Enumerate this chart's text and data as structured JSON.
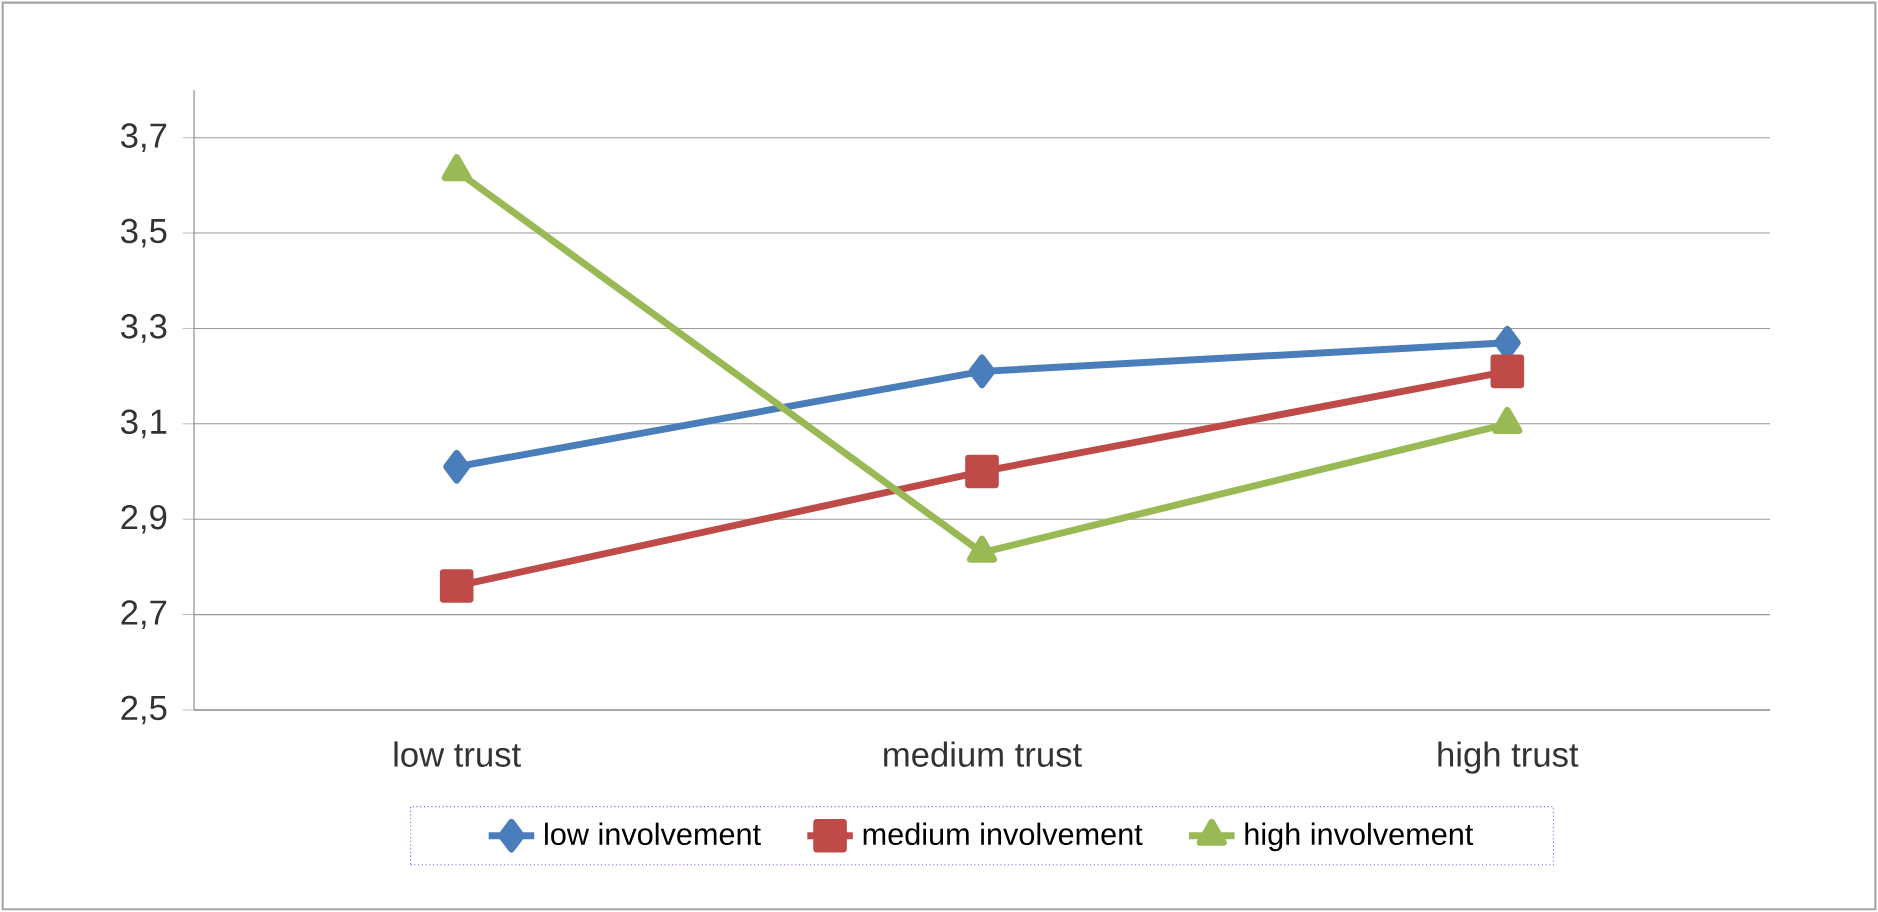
{
  "chart_data": {
    "type": "line",
    "categories": [
      "low trust",
      "medium trust",
      "high trust"
    ],
    "series": [
      {
        "name": "low involvement",
        "color": "#4a7ebb",
        "marker": "diamond",
        "values": [
          3.01,
          3.21,
          3.27
        ]
      },
      {
        "name": "medium involvement",
        "color": "#be4b48",
        "marker": "square",
        "values": [
          2.76,
          3.0,
          3.21
        ]
      },
      {
        "name": "high involvement",
        "color": "#98b954",
        "marker": "triangle",
        "values": [
          3.63,
          2.83,
          3.1
        ]
      }
    ],
    "ylim": [
      2.5,
      3.8
    ],
    "yticks": [
      {
        "value": 2.5,
        "label": "2,5"
      },
      {
        "value": 2.7,
        "label": "2,7"
      },
      {
        "value": 2.9,
        "label": "2,9"
      },
      {
        "value": 3.1,
        "label": "3,1"
      },
      {
        "value": 3.3,
        "label": "3,3"
      },
      {
        "value": 3.5,
        "label": "3,5"
      },
      {
        "value": 3.7,
        "label": "3,7"
      }
    ],
    "grid": "y",
    "legend": "bottom",
    "line_style": "solid"
  }
}
